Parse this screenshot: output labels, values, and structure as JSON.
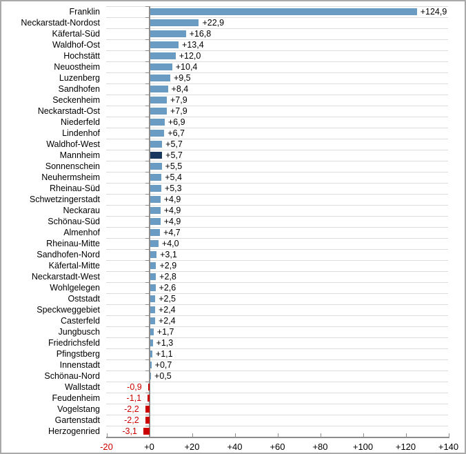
{
  "chart_data": {
    "type": "bar",
    "orientation": "horizontal",
    "title": "",
    "xlabel": "",
    "ylabel": "",
    "xlim": [
      -20,
      140
    ],
    "grid": "horizontal-category-boundaries",
    "legend": "none",
    "value_format": "german-decimal-comma-signed",
    "rows": [
      {
        "label": "Franklin",
        "value": 124.9,
        "display": "+124,9",
        "highlight": false
      },
      {
        "label": "Neckarstadt-Nordost",
        "value": 22.9,
        "display": "+22,9",
        "highlight": false
      },
      {
        "label": "Käfertal-Süd",
        "value": 16.8,
        "display": "+16,8",
        "highlight": false
      },
      {
        "label": "Waldhof-Ost",
        "value": 13.4,
        "display": "+13,4",
        "highlight": false
      },
      {
        "label": "Hochstätt",
        "value": 12.0,
        "display": "+12,0",
        "highlight": false
      },
      {
        "label": "Neuostheim",
        "value": 10.4,
        "display": "+10,4",
        "highlight": false
      },
      {
        "label": "Luzenberg",
        "value": 9.5,
        "display": "+9,5",
        "highlight": false
      },
      {
        "label": "Sandhofen",
        "value": 8.4,
        "display": "+8,4",
        "highlight": false
      },
      {
        "label": "Seckenheim",
        "value": 7.9,
        "display": "+7,9",
        "highlight": false
      },
      {
        "label": "Neckarstadt-Ost",
        "value": 7.9,
        "display": "+7,9",
        "highlight": false
      },
      {
        "label": "Niederfeld",
        "value": 6.9,
        "display": "+6,9",
        "highlight": false
      },
      {
        "label": "Lindenhof",
        "value": 6.7,
        "display": "+6,7",
        "highlight": false
      },
      {
        "label": "Waldhof-West",
        "value": 5.7,
        "display": "+5,7",
        "highlight": false
      },
      {
        "label": "Mannheim",
        "value": 5.7,
        "display": "+5,7",
        "highlight": true
      },
      {
        "label": "Sonnenschein",
        "value": 5.5,
        "display": "+5,5",
        "highlight": false
      },
      {
        "label": "Neuhermsheim",
        "value": 5.4,
        "display": "+5,4",
        "highlight": false
      },
      {
        "label": "Rheinau-Süd",
        "value": 5.3,
        "display": "+5,3",
        "highlight": false
      },
      {
        "label": "Schwetzingerstadt",
        "value": 4.9,
        "display": "+4,9",
        "highlight": false
      },
      {
        "label": "Neckarau",
        "value": 4.9,
        "display": "+4,9",
        "highlight": false
      },
      {
        "label": "Schönau-Süd",
        "value": 4.9,
        "display": "+4,9",
        "highlight": false
      },
      {
        "label": "Almenhof",
        "value": 4.7,
        "display": "+4,7",
        "highlight": false
      },
      {
        "label": "Rheinau-Mitte",
        "value": 4.0,
        "display": "+4,0",
        "highlight": false
      },
      {
        "label": "Sandhofen-Nord",
        "value": 3.1,
        "display": "+3,1",
        "highlight": false
      },
      {
        "label": "Käfertal-Mitte",
        "value": 2.9,
        "display": "+2,9",
        "highlight": false
      },
      {
        "label": "Neckarstadt-West",
        "value": 2.8,
        "display": "+2,8",
        "highlight": false
      },
      {
        "label": "Wohlgelegen",
        "value": 2.6,
        "display": "+2,6",
        "highlight": false
      },
      {
        "label": "Oststadt",
        "value": 2.5,
        "display": "+2,5",
        "highlight": false
      },
      {
        "label": "Speckweggebiet",
        "value": 2.4,
        "display": "+2,4",
        "highlight": false
      },
      {
        "label": "Casterfeld",
        "value": 2.4,
        "display": "+2,4",
        "highlight": false
      },
      {
        "label": "Jungbusch",
        "value": 1.7,
        "display": "+1,7",
        "highlight": false
      },
      {
        "label": "Friedrichsfeld",
        "value": 1.3,
        "display": "+1,3",
        "highlight": false
      },
      {
        "label": "Pfingstberg",
        "value": 1.1,
        "display": "+1,1",
        "highlight": false
      },
      {
        "label": "Innenstadt",
        "value": 0.7,
        "display": "+0,7",
        "highlight": false
      },
      {
        "label": "Schönau-Nord",
        "value": 0.5,
        "display": "+0,5",
        "highlight": false
      },
      {
        "label": "Wallstadt",
        "value": -0.9,
        "display": "-0,9",
        "highlight": false
      },
      {
        "label": "Feudenheim",
        "value": -1.1,
        "display": "-1,1",
        "highlight": false
      },
      {
        "label": "Vogelstang",
        "value": -2.2,
        "display": "-2,2",
        "highlight": false
      },
      {
        "label": "Gartenstadt",
        "value": -2.2,
        "display": "-2,2",
        "highlight": false
      },
      {
        "label": "Herzogenried",
        "value": -3.1,
        "display": "-3,1",
        "highlight": false
      }
    ],
    "x_axis": {
      "tick_values": [
        -20,
        0,
        20,
        40,
        60,
        80,
        100,
        120,
        140
      ],
      "tick_labels": [
        "-20",
        "+0",
        "+20",
        "+40",
        "+60",
        "+80",
        "+100",
        "+120",
        "+140"
      ]
    },
    "colors": {
      "bar_positive": "#6a9bc3",
      "bar_highlight": "#17375e",
      "bar_negative": "#cc0000",
      "value_text_positive": "#000000",
      "value_text_negative": "#cc0000",
      "tick_label_negative": "#cc0000",
      "axis": "#8c8c8c",
      "gridline": "#dcdcdc"
    }
  }
}
